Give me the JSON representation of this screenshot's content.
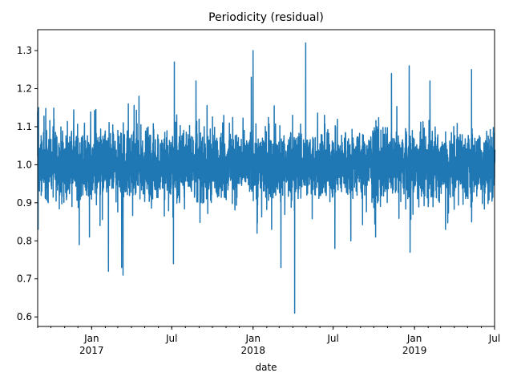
{
  "chart_data": {
    "type": "line",
    "title": "Periodicity (residual)",
    "xlabel": "date",
    "ylabel": "",
    "x_range": [
      "2016-09-01",
      "2019-07-01"
    ],
    "ylim": [
      0.575,
      1.355
    ],
    "y_ticks": [
      0.6,
      0.7,
      0.8,
      0.9,
      1.0,
      1.1,
      1.2,
      1.3
    ],
    "y_tick_labels": [
      "0.6",
      "0.7",
      "0.8",
      "0.9",
      "1.0",
      "1.1",
      "1.2",
      "1.3"
    ],
    "x_major_ticks": [
      {
        "date": "2017-01-01",
        "label": "Jan",
        "sublabel": "2017"
      },
      {
        "date": "2017-07-01",
        "label": "Jul",
        "sublabel": ""
      },
      {
        "date": "2018-01-01",
        "label": "Jan",
        "sublabel": "2018"
      },
      {
        "date": "2018-07-01",
        "label": "Jul",
        "sublabel": ""
      },
      {
        "date": "2019-01-01",
        "label": "Jan",
        "sublabel": "2019"
      },
      {
        "date": "2019-07-01",
        "label": "Jul",
        "sublabel": ""
      }
    ],
    "grid": false,
    "legend": "none",
    "series": [
      {
        "color": "#1f77b4",
        "band_low": 0.9,
        "band_high": 1.1,
        "spikes": [
          {
            "date": "2016-09-02",
            "value": 0.83
          },
          {
            "date": "2016-09-03",
            "value": 1.15
          },
          {
            "date": "2016-12-04",
            "value": 0.79
          },
          {
            "date": "2016-12-27",
            "value": 0.81
          },
          {
            "date": "2017-01-20",
            "value": 0.84
          },
          {
            "date": "2017-02-08",
            "value": 0.72
          },
          {
            "date": "2017-03-10",
            "value": 0.73
          },
          {
            "date": "2017-03-13",
            "value": 0.71
          },
          {
            "date": "2017-03-25",
            "value": 1.16
          },
          {
            "date": "2017-04-18",
            "value": 1.18
          },
          {
            "date": "2017-07-05",
            "value": 0.74
          },
          {
            "date": "2017-07-07",
            "value": 1.27
          },
          {
            "date": "2017-08-25",
            "value": 1.22
          },
          {
            "date": "2017-12-28",
            "value": 1.23
          },
          {
            "date": "2018-01-01",
            "value": 1.3
          },
          {
            "date": "2018-01-10",
            "value": 0.82
          },
          {
            "date": "2018-02-12",
            "value": 0.83
          },
          {
            "date": "2018-03-05",
            "value": 0.73
          },
          {
            "date": "2018-04-05",
            "value": 0.61
          },
          {
            "date": "2018-04-30",
            "value": 1.32
          },
          {
            "date": "2018-07-05",
            "value": 0.78
          },
          {
            "date": "2018-08-10",
            "value": 0.8
          },
          {
            "date": "2018-10-05",
            "value": 0.81
          },
          {
            "date": "2018-11-10",
            "value": 1.24
          },
          {
            "date": "2018-12-20",
            "value": 1.26
          },
          {
            "date": "2018-12-22",
            "value": 0.77
          },
          {
            "date": "2019-02-05",
            "value": 1.22
          },
          {
            "date": "2019-03-12",
            "value": 0.83
          },
          {
            "date": "2019-05-10",
            "value": 1.25
          }
        ]
      }
    ]
  }
}
